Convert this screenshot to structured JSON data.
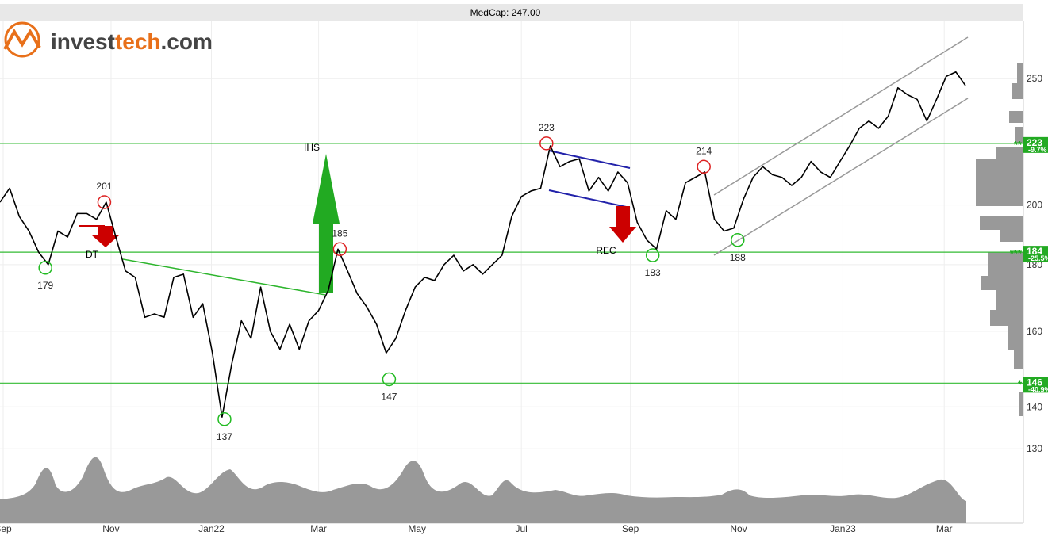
{
  "header": "MedCap: 247.00",
  "logo": [
    "invest",
    "tech",
    ".com"
  ],
  "chart_data": {
    "type": "line",
    "log_scale": true,
    "grid": true,
    "ylim": [
      114,
      277
    ],
    "yticks": [
      130,
      140,
      160,
      180,
      200,
      250
    ],
    "xlim": [
      0,
      106
    ],
    "xticks": [
      {
        "value": 0.33,
        "label": "Sep"
      },
      {
        "value": 11.5,
        "label": "Nov"
      },
      {
        "value": 21.9,
        "label": "Jan22"
      },
      {
        "value": 33,
        "label": "Mar"
      },
      {
        "value": 43.2,
        "label": "May"
      },
      {
        "value": 54,
        "label": "Jul"
      },
      {
        "value": 65.3,
        "label": "Sep"
      },
      {
        "value": 76.5,
        "label": "Nov"
      },
      {
        "value": 87.3,
        "label": "Jan23"
      },
      {
        "value": 97.8,
        "label": "Mar"
      }
    ],
    "series": [
      {
        "color": "#000000",
        "values": [
          201,
          206,
          196,
          191,
          184,
          180,
          191,
          189,
          197,
          197,
          195,
          201,
          189,
          178,
          176,
          164,
          165,
          164,
          176,
          177,
          164,
          168,
          154,
          137.5,
          151,
          163,
          158,
          173,
          160,
          155,
          162,
          155,
          163,
          166,
          172,
          185,
          178,
          171,
          167,
          162,
          154,
          158,
          166,
          173,
          176,
          175,
          180,
          183,
          178,
          180,
          177,
          180,
          183,
          196,
          203,
          205,
          206,
          222,
          214,
          216,
          217,
          205,
          210,
          205,
          212,
          208,
          194,
          188,
          185,
          198,
          195,
          208,
          210,
          212,
          195,
          191,
          192,
          202,
          210,
          214,
          211,
          210,
          207,
          210,
          216,
          212,
          210,
          216,
          222,
          229,
          232,
          229,
          234,
          246,
          243,
          241,
          232,
          241,
          251,
          253,
          247
        ]
      }
    ],
    "pivots": [
      {
        "x": 4.7,
        "value": 179,
        "kind": "low"
      },
      {
        "x": 10.8,
        "value": 201,
        "kind": "high"
      },
      {
        "x": 23.25,
        "value": 137,
        "kind": "low"
      },
      {
        "x": 35.2,
        "value": 185,
        "kind": "high"
      },
      {
        "x": 40.3,
        "value": 147,
        "kind": "low"
      },
      {
        "x": 56.6,
        "value": 223,
        "kind": "high"
      },
      {
        "x": 67.6,
        "value": 183,
        "kind": "low"
      },
      {
        "x": 72.9,
        "value": 214,
        "kind": "high"
      },
      {
        "x": 76.4,
        "value": 188,
        "kind": "low"
      }
    ],
    "levels": [
      {
        "value": 223,
        "change": "-9.7%",
        "stars": "**"
      },
      {
        "value": 184,
        "change": "-25.5%",
        "stars": "***"
      },
      {
        "value": 146,
        "change": "-40.9%",
        "stars": "*"
      }
    ],
    "patterns": [
      "DT",
      "IHS",
      "REC"
    ]
  }
}
